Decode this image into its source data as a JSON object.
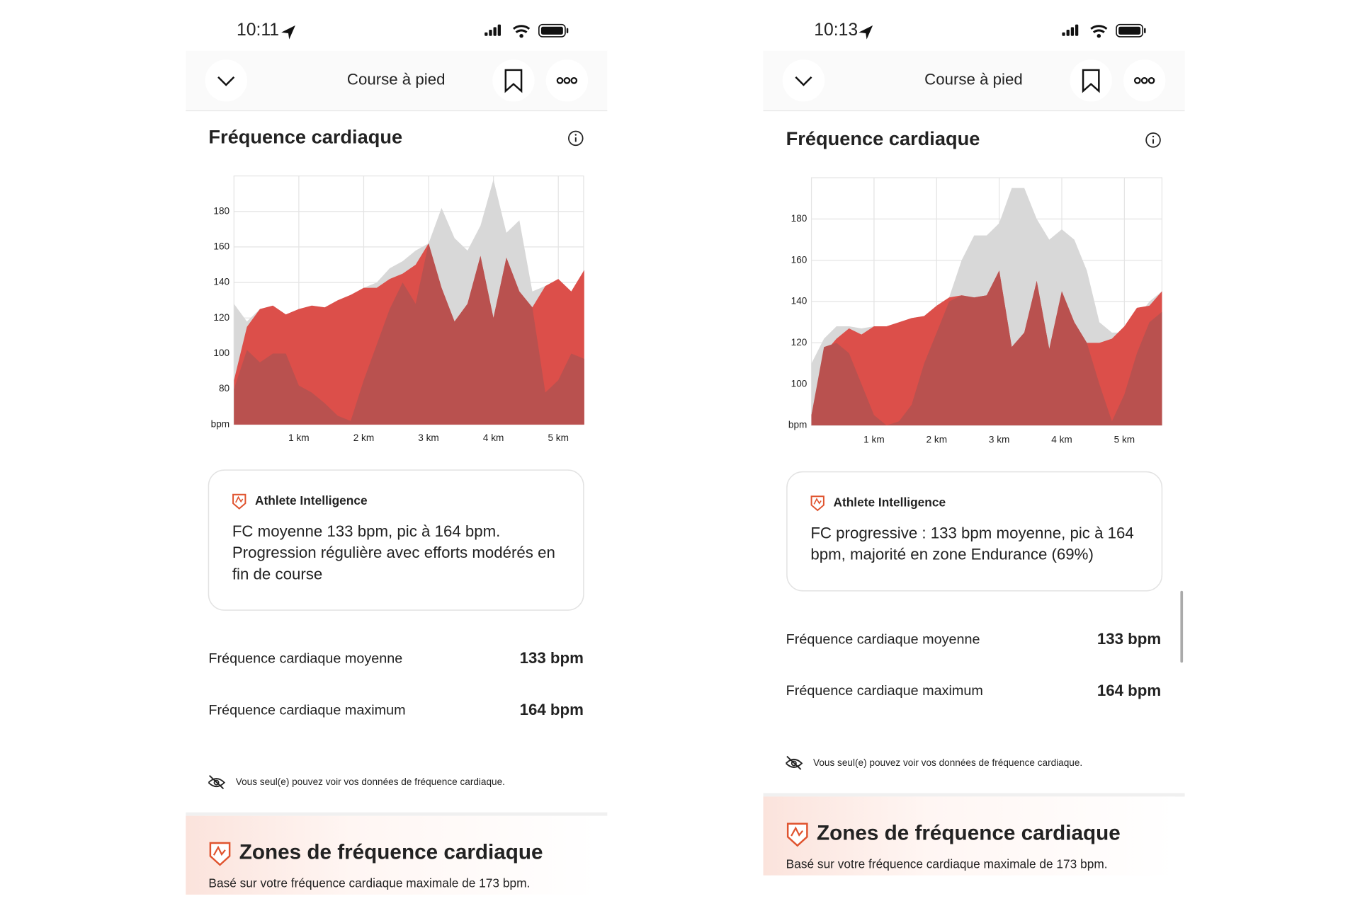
{
  "screens": [
    {
      "status": {
        "time": "10:11"
      },
      "nav": {
        "title": "Course à pied"
      },
      "chart": {
        "type": "area",
        "title": "Fréquence cardiaque",
        "ylabel": "bpm",
        "ylim": [
          60,
          200
        ],
        "yticks": [
          80,
          100,
          120,
          140,
          160,
          180
        ],
        "xlim": [
          0,
          5.39
        ],
        "xticks": [
          {
            "value": 1,
            "label": "1 km"
          },
          {
            "value": 2,
            "label": "2 km"
          },
          {
            "value": 3,
            "label": "3 km"
          },
          {
            "value": 4,
            "label": "4 km"
          },
          {
            "value": 5,
            "label": "5 km"
          }
        ],
        "grid": true,
        "x": [
          0,
          0.2,
          0.4,
          0.6,
          0.8,
          1.0,
          1.2,
          1.4,
          1.6,
          1.8,
          2.0,
          2.2,
          2.4,
          2.6,
          2.8,
          3.0,
          3.2,
          3.4,
          3.6,
          3.8,
          4.0,
          4.2,
          4.4,
          4.6,
          4.8,
          5.0,
          5.2,
          5.4
        ],
        "series": [
          {
            "color": "#d8d8d8",
            "values": [
              128,
              118,
              125,
              127,
              122,
              125,
              127,
              126,
              130,
              133,
              137,
              140,
              148,
              152,
              158,
              162,
              182,
              165,
              158,
              172,
              198,
              168,
              175,
              135,
              138,
              142,
              135,
              147
            ]
          },
          {
            "color": "#dc4f4a",
            "values": [
              85,
              115,
              125,
              127,
              122,
              125,
              127,
              126,
              130,
              133,
              137,
              137,
              142,
              145,
              150,
              162,
              137,
              118,
              128,
              155,
              120,
              154,
              135,
              126,
              138,
              142,
              135,
              147
            ]
          },
          {
            "color": "#b9514f",
            "values": [
              80,
              102,
              95,
              100,
              100,
              82,
              78,
              72,
              65,
              62,
              85,
              105,
              125,
              140,
              128,
              162,
              137,
              118,
              128,
              155,
              120,
              154,
              135,
              126,
              78,
              85,
              100,
              97
            ]
          }
        ]
      },
      "ai": {
        "label": "Athlete Intelligence",
        "lines": [
          "FC moyenne 133 bpm, pic à 164 bpm.",
          "Progression régulière avec efforts modérés en",
          "fin de course"
        ]
      },
      "stats": [
        {
          "label": "Fréquence cardiaque moyenne",
          "value": "133 bpm"
        },
        {
          "label": "Fréquence cardiaque maximum",
          "value": "164 bpm"
        }
      ],
      "privacy": "Vous seul(e) pouvez voir vos données de fréquence cardiaque.",
      "zones": {
        "title": "Zones de fréquence cardiaque",
        "subtitle": "Basé sur votre fréquence cardiaque maximale de 173 bpm."
      }
    },
    {
      "status": {
        "time": "10:13"
      },
      "nav": {
        "title": "Course à pied"
      },
      "chart": {
        "type": "area",
        "title": "Fréquence cardiaque",
        "ylabel": "bpm",
        "ylim": [
          80,
          200
        ],
        "yticks": [
          100,
          120,
          140,
          160,
          180
        ],
        "xlim": [
          0,
          5.6
        ],
        "xticks": [
          {
            "value": 1,
            "label": "1 km"
          },
          {
            "value": 2,
            "label": "2 km"
          },
          {
            "value": 3,
            "label": "3 km"
          },
          {
            "value": 4,
            "label": "4 km"
          },
          {
            "value": 5,
            "label": "5 km"
          }
        ],
        "grid": true,
        "x": [
          0,
          0.2,
          0.4,
          0.6,
          0.8,
          1.0,
          1.2,
          1.4,
          1.6,
          1.8,
          2.0,
          2.2,
          2.4,
          2.6,
          2.8,
          3.0,
          3.2,
          3.4,
          3.6,
          3.8,
          4.0,
          4.2,
          4.4,
          4.6,
          4.8,
          5.0,
          5.2,
          5.4,
          5.6
        ],
        "series": [
          {
            "color": "#d8d8d8",
            "values": [
              110,
              122,
              128,
              128,
              127,
              128,
              128,
              130,
              132,
              133,
              138,
              142,
              160,
              172,
              172,
              178,
              195,
              195,
              180,
              170,
              175,
              170,
              155,
              130,
              125,
              125,
              132,
              140,
              145
            ]
          },
          {
            "color": "#dc4f4a",
            "values": [
              85,
              115,
              122,
              127,
              124,
              128,
              128,
              130,
              132,
              133,
              138,
              142,
              143,
              142,
              143,
              155,
              118,
              125,
              150,
              117,
              145,
              130,
              120,
              120,
              122,
              128,
              137,
              138,
              145
            ]
          },
          {
            "color": "#b9514f",
            "values": [
              85,
              118,
              120,
              115,
              100,
              85,
              80,
              82,
              90,
              110,
              125,
              140,
              143,
              142,
              143,
              155,
              118,
              125,
              150,
              117,
              145,
              130,
              120,
              100,
              82,
              95,
              115,
              130,
              135
            ]
          }
        ]
      },
      "ai": {
        "label": "Athlete Intelligence",
        "lines": [
          "FC progressive : 133 bpm moyenne, pic à 164",
          "bpm, majorité en zone Endurance (69%)"
        ]
      },
      "stats": [
        {
          "label": "Fréquence cardiaque moyenne",
          "value": "133 bpm"
        },
        {
          "label": "Fréquence cardiaque maximum",
          "value": "164 bpm"
        }
      ],
      "privacy": "Vous seul(e) pouvez voir vos données de fréquence cardiaque.",
      "zones": {
        "title": "Zones de fréquence cardiaque",
        "subtitle": "Basé sur votre fréquence cardiaque maximale de 173 bpm."
      }
    }
  ]
}
